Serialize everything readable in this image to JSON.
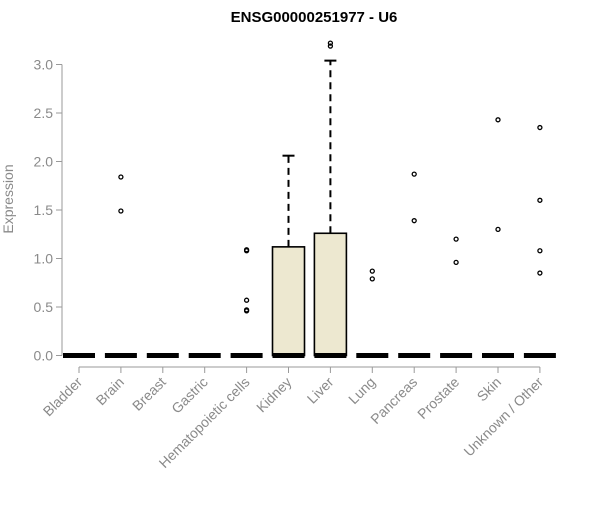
{
  "chart_data": {
    "type": "box",
    "title": "ENSG00000251977 - U6",
    "xlabel": "",
    "ylabel": "Expression",
    "ylim": [
      0,
      3.0
    ],
    "yticks": [
      0.0,
      0.5,
      1.0,
      1.5,
      2.0,
      2.5,
      3.0
    ],
    "ytick_labels": [
      "0.0",
      "0.5",
      "1.0",
      "1.5",
      "2.0",
      "2.5",
      "3.0"
    ],
    "categories": [
      "Bladder",
      "Brain",
      "Breast",
      "Gastric",
      "Hematopoietic cells",
      "Kidney",
      "Liver",
      "Lung",
      "Pancreas",
      "Prostate",
      "Skin",
      "Unknown / Other"
    ],
    "boxes": [
      {
        "category": "Bladder",
        "min": 0,
        "q1": 0,
        "median": 0,
        "q3": 0,
        "max": 0,
        "outliers": []
      },
      {
        "category": "Brain",
        "min": 0,
        "q1": 0,
        "median": 0,
        "q3": 0,
        "max": 0,
        "outliers": [
          1.49,
          1.84
        ]
      },
      {
        "category": "Breast",
        "min": 0,
        "q1": 0,
        "median": 0,
        "q3": 0,
        "max": 0,
        "outliers": []
      },
      {
        "category": "Gastric",
        "min": 0,
        "q1": 0,
        "median": 0,
        "q3": 0,
        "max": 0,
        "outliers": []
      },
      {
        "category": "Hematopoietic cells",
        "min": 0,
        "q1": 0,
        "median": 0,
        "q3": 0,
        "max": 0,
        "outliers": [
          0.46,
          0.47,
          0.57,
          1.08,
          1.09
        ]
      },
      {
        "category": "Kidney",
        "min": 0,
        "q1": 0,
        "median": 0,
        "q3": 1.12,
        "max": 2.06,
        "outliers": []
      },
      {
        "category": "Liver",
        "min": 0,
        "q1": 0,
        "median": 0,
        "q3": 1.26,
        "max": 3.04,
        "outliers": [
          3.19,
          3.22
        ]
      },
      {
        "category": "Lung",
        "min": 0,
        "q1": 0,
        "median": 0,
        "q3": 0,
        "max": 0,
        "outliers": [
          0.79,
          0.87
        ]
      },
      {
        "category": "Pancreas",
        "min": 0,
        "q1": 0,
        "median": 0,
        "q3": 0,
        "max": 0,
        "outliers": [
          1.39,
          1.87
        ]
      },
      {
        "category": "Prostate",
        "min": 0,
        "q1": 0,
        "median": 0,
        "q3": 0,
        "max": 0,
        "outliers": [
          0.96,
          1.2
        ]
      },
      {
        "category": "Skin",
        "min": 0,
        "q1": 0,
        "median": 0,
        "q3": 0,
        "max": 0,
        "outliers": [
          1.3,
          2.43
        ]
      },
      {
        "category": "Unknown / Other",
        "min": 0,
        "q1": 0,
        "median": 0,
        "q3": 0,
        "max": 0,
        "outliers": [
          0.85,
          1.08,
          1.6,
          2.35
        ]
      }
    ],
    "box_fill": "#ede8d0",
    "line_color": "#000000",
    "axis_color": "#9a9a9a",
    "label_color": "#8a8a8a",
    "grid": false,
    "legend": "none"
  }
}
